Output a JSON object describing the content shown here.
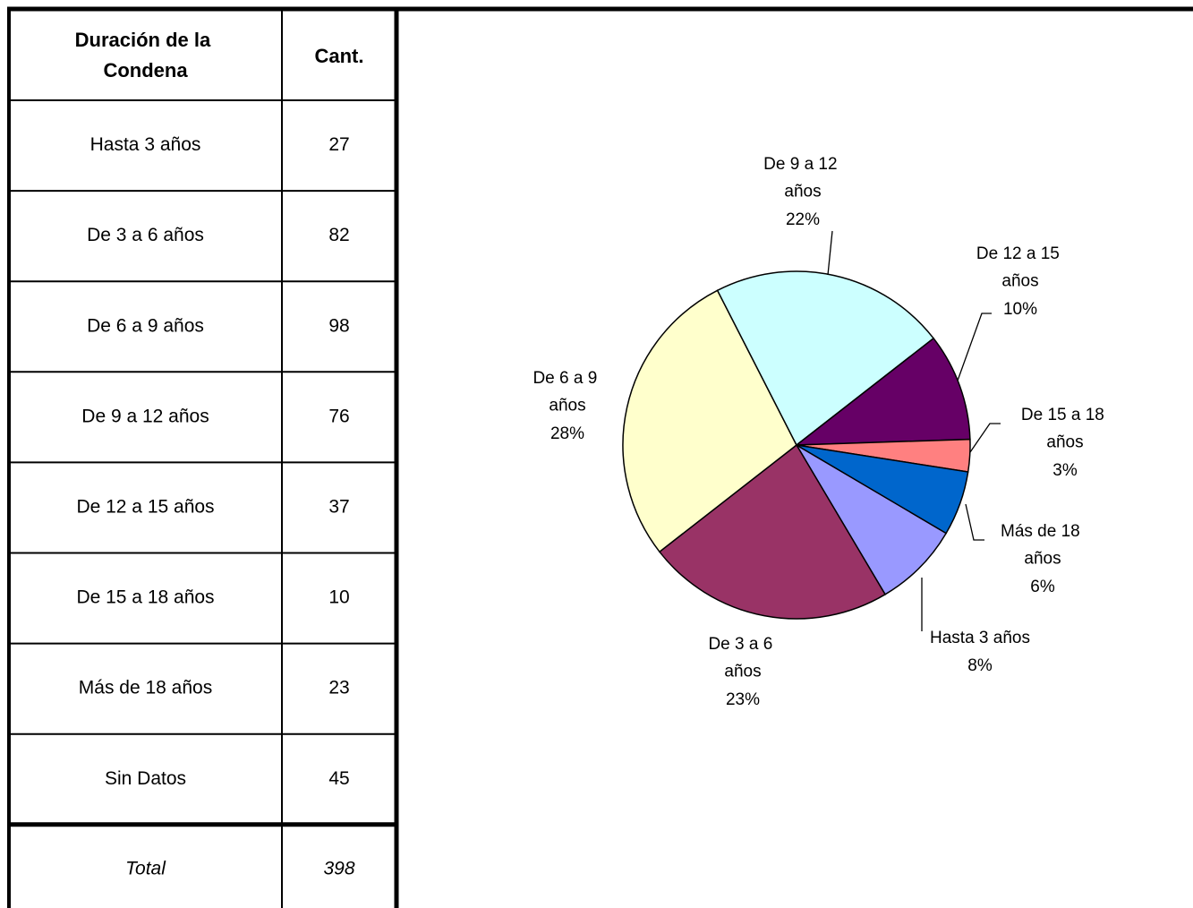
{
  "table": {
    "header": [
      "Duración de la Condena",
      "Cant."
    ],
    "rows": [
      [
        "Hasta 3 años",
        "27"
      ],
      [
        "De 3 a 6 años",
        "82"
      ],
      [
        "De 6 a 9 años",
        "98"
      ],
      [
        "De 9 a 12 años",
        "76"
      ],
      [
        "De 12 a 15 años",
        "37"
      ],
      [
        "De 15 a 18 años",
        "10"
      ],
      [
        "Más de 18 años",
        "23"
      ],
      [
        "Sin Datos",
        "45"
      ]
    ],
    "total": [
      "Total",
      "398"
    ]
  },
  "chart_data": {
    "type": "pie",
    "categories": [
      "Hasta 3 años",
      "De 3 a 6 años",
      "De 6 a 9 años",
      "De 9 a 12 años",
      "De 12 a 15 años",
      "De 15 a 18 años",
      "Más de 18 años"
    ],
    "values": [
      8,
      23,
      28,
      22,
      10,
      3,
      6
    ],
    "value_labels": [
      "8%",
      "23%",
      "28%",
      "22%",
      "10%",
      "3%",
      "6%"
    ],
    "colors": [
      "#9999ff",
      "#993366",
      "#ffffcc",
      "#ccffff",
      "#660066",
      "#ff8080",
      "#0066cc"
    ]
  }
}
